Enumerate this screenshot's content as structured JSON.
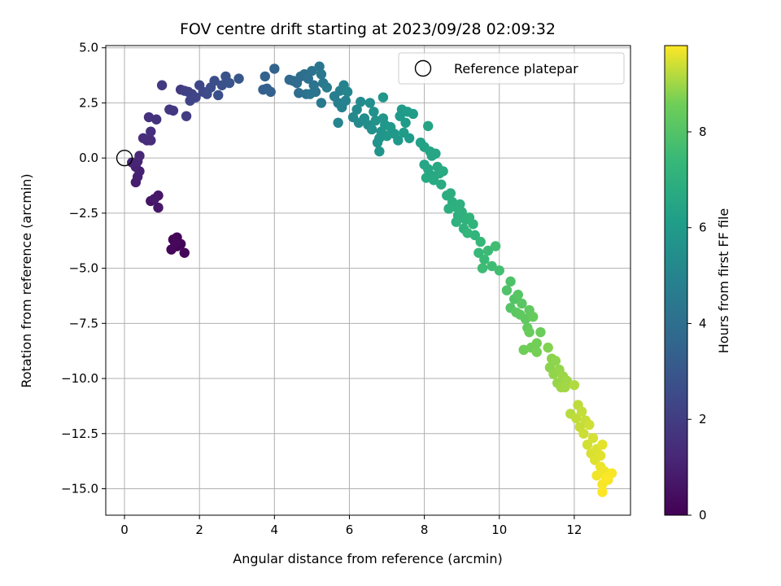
{
  "chart_data": {
    "type": "scatter",
    "title": "FOV centre drift starting at 2023/09/28 02:09:32",
    "xlabel": "Angular distance from reference (arcmin)",
    "ylabel": "Rotation from reference (arcmin)",
    "xlim": [
      -0.5,
      13.5
    ],
    "ylim": [
      -16.2,
      5.1
    ],
    "xticks": [
      0,
      2,
      4,
      6,
      8,
      10,
      12
    ],
    "xtick_labels": [
      "0",
      "2",
      "4",
      "6",
      "8",
      "10",
      "12"
    ],
    "yticks": [
      5.0,
      2.5,
      0.0,
      -2.5,
      -5.0,
      -7.5,
      -10.0,
      -12.5,
      -15.0
    ],
    "ytick_labels": [
      "5.0",
      "2.5",
      "0.0",
      "−2.5",
      "−5.0",
      "−7.5",
      "−10.0",
      "−12.5",
      "−15.0"
    ],
    "grid": true,
    "legend": {
      "placement": "top-right",
      "entries": [
        "Reference platepar"
      ]
    },
    "colorbar": {
      "label": "Hours from first FF file",
      "range": [
        0,
        9.8
      ],
      "ticks": [
        0,
        2,
        4,
        6,
        8
      ],
      "tick_labels": [
        "0",
        "2",
        "4",
        "6",
        "8"
      ],
      "colormap": "viridis"
    },
    "reference_point": {
      "x": 0.0,
      "y": 0.0
    },
    "points": [
      [
        1.3,
        -3.7,
        0.05
      ],
      [
        1.4,
        -4.0,
        0.1
      ],
      [
        1.5,
        -3.9,
        0.12
      ],
      [
        1.4,
        -3.6,
        0.15
      ],
      [
        1.6,
        -4.3,
        0.18
      ],
      [
        1.25,
        -4.15,
        0.2
      ],
      [
        1.35,
        -3.85,
        0.22
      ],
      [
        0.7,
        -1.95,
        0.6
      ],
      [
        0.9,
        -1.7,
        0.65
      ],
      [
        0.9,
        -2.25,
        0.7
      ],
      [
        0.8,
        -1.85,
        0.75
      ],
      [
        0.3,
        -1.1,
        0.9
      ],
      [
        0.35,
        -0.85,
        0.95
      ],
      [
        0.4,
        -0.6,
        1.0
      ],
      [
        0.3,
        -0.4,
        1.05
      ],
      [
        0.2,
        -0.2,
        1.1
      ],
      [
        0.35,
        -0.15,
        1.15
      ],
      [
        0.4,
        0.1,
        1.2
      ],
      [
        0.6,
        0.8,
        1.35
      ],
      [
        0.7,
        0.8,
        1.4
      ],
      [
        0.5,
        0.9,
        1.45
      ],
      [
        0.7,
        1.2,
        1.5
      ],
      [
        0.65,
        1.85,
        1.55
      ],
      [
        0.85,
        1.75,
        1.6
      ],
      [
        1.2,
        2.2,
        1.75
      ],
      [
        1.3,
        2.15,
        1.8
      ],
      [
        1.0,
        3.3,
        1.85
      ],
      [
        1.5,
        3.1,
        1.9
      ],
      [
        1.65,
        1.9,
        1.95
      ],
      [
        1.6,
        3.05,
        2.1
      ],
      [
        1.7,
        3.0,
        2.15
      ],
      [
        1.8,
        2.9,
        2.2
      ],
      [
        1.75,
        2.6,
        2.25
      ],
      [
        1.9,
        2.75,
        2.3
      ],
      [
        2.0,
        3.3,
        2.35
      ],
      [
        2.1,
        3.0,
        2.4
      ],
      [
        2.2,
        2.9,
        2.55
      ],
      [
        2.3,
        3.2,
        2.6
      ],
      [
        2.4,
        3.5,
        2.65
      ],
      [
        2.5,
        2.85,
        2.7
      ],
      [
        2.6,
        3.3,
        2.75
      ],
      [
        2.7,
        3.7,
        2.8
      ],
      [
        2.8,
        3.4,
        2.85
      ],
      [
        3.05,
        3.6,
        2.95
      ],
      [
        3.7,
        3.1,
        3.3
      ],
      [
        3.8,
        3.15,
        3.35
      ],
      [
        3.9,
        3.0,
        3.4
      ],
      [
        3.75,
        3.7,
        3.45
      ],
      [
        4.0,
        4.05,
        3.5
      ],
      [
        4.4,
        3.55,
        3.75
      ],
      [
        4.5,
        3.5,
        3.8
      ],
      [
        4.6,
        3.4,
        3.85
      ],
      [
        4.7,
        3.7,
        3.9
      ],
      [
        4.65,
        2.95,
        3.95
      ],
      [
        4.8,
        3.8,
        4.0
      ],
      [
        4.9,
        3.6,
        4.05
      ],
      [
        4.85,
        2.9,
        4.1
      ],
      [
        5.0,
        3.95,
        4.15
      ],
      [
        5.05,
        3.3,
        4.2
      ],
      [
        5.1,
        3.0,
        4.25
      ],
      [
        4.95,
        2.9,
        4.3
      ],
      [
        5.2,
        4.15,
        4.35
      ],
      [
        5.25,
        3.8,
        4.4
      ],
      [
        5.3,
        3.4,
        4.45
      ],
      [
        5.25,
        2.5,
        4.5
      ],
      [
        5.4,
        3.2,
        4.55
      ],
      [
        5.6,
        2.8,
        4.7
      ],
      [
        5.7,
        2.5,
        4.75
      ],
      [
        5.75,
        3.05,
        4.8
      ],
      [
        5.8,
        2.3,
        4.85
      ],
      [
        5.9,
        2.6,
        4.9
      ],
      [
        5.85,
        3.3,
        4.95
      ],
      [
        5.7,
        1.6,
        5.0
      ],
      [
        5.95,
        3.0,
        5.05
      ],
      [
        6.1,
        1.85,
        5.15
      ],
      [
        6.2,
        2.2,
        5.2
      ],
      [
        6.3,
        2.55,
        5.25
      ],
      [
        6.25,
        1.6,
        5.3
      ],
      [
        6.4,
        1.8,
        5.35
      ],
      [
        6.5,
        1.5,
        5.4
      ],
      [
        6.55,
        2.5,
        5.45
      ],
      [
        6.6,
        1.3,
        5.5
      ],
      [
        6.65,
        2.1,
        5.55
      ],
      [
        6.7,
        1.7,
        5.6
      ],
      [
        6.75,
        0.7,
        5.65
      ],
      [
        6.8,
        0.9,
        5.7
      ],
      [
        6.85,
        1.2,
        5.72
      ],
      [
        6.8,
        0.3,
        5.75
      ],
      [
        6.9,
        1.8,
        5.78
      ],
      [
        6.95,
        1.5,
        5.8
      ],
      [
        6.9,
        2.75,
        5.82
      ],
      [
        7.0,
        1.0,
        5.85
      ],
      [
        7.1,
        1.4,
        5.88
      ],
      [
        7.2,
        1.1,
        5.9
      ],
      [
        7.3,
        0.8,
        5.92
      ],
      [
        7.35,
        1.9,
        5.95
      ],
      [
        7.4,
        2.2,
        5.98
      ],
      [
        7.5,
        1.6,
        6.0
      ],
      [
        7.45,
        1.15,
        6.02
      ],
      [
        7.6,
        0.9,
        6.05
      ],
      [
        7.7,
        2.0,
        6.08
      ],
      [
        7.55,
        2.1,
        6.1
      ],
      [
        7.9,
        0.7,
        6.3
      ],
      [
        8.0,
        0.5,
        6.35
      ],
      [
        8.1,
        1.45,
        6.4
      ],
      [
        8.15,
        0.3,
        6.45
      ],
      [
        8.2,
        0.1,
        6.48
      ],
      [
        8.3,
        0.2,
        6.5
      ],
      [
        8.0,
        -0.3,
        6.52
      ],
      [
        8.1,
        -0.5,
        6.55
      ],
      [
        8.2,
        -0.8,
        6.58
      ],
      [
        8.35,
        -0.4,
        6.6
      ],
      [
        8.4,
        -0.7,
        6.62
      ],
      [
        8.05,
        -0.9,
        6.65
      ],
      [
        8.25,
        -1.0,
        6.68
      ],
      [
        8.5,
        -0.6,
        6.7
      ],
      [
        8.45,
        -1.2,
        6.72
      ],
      [
        8.6,
        -1.7,
        6.85
      ],
      [
        8.7,
        -1.6,
        6.88
      ],
      [
        8.75,
        -2.0,
        6.9
      ],
      [
        8.65,
        -2.3,
        6.93
      ],
      [
        8.8,
        -2.2,
        6.95
      ],
      [
        8.9,
        -2.6,
        6.98
      ],
      [
        8.95,
        -2.1,
        7.0
      ],
      [
        9.0,
        -2.45,
        7.03
      ],
      [
        9.1,
        -2.8,
        7.05
      ],
      [
        8.85,
        -2.9,
        7.08
      ],
      [
        9.05,
        -3.2,
        7.1
      ],
      [
        9.2,
        -2.7,
        7.13
      ],
      [
        9.3,
        -3.0,
        7.15
      ],
      [
        9.15,
        -3.4,
        7.18
      ],
      [
        9.35,
        -3.5,
        7.2
      ],
      [
        9.5,
        -3.8,
        7.35
      ],
      [
        9.45,
        -4.3,
        7.4
      ],
      [
        9.6,
        -4.6,
        7.45
      ],
      [
        9.7,
        -4.2,
        7.5
      ],
      [
        9.55,
        -5.0,
        7.55
      ],
      [
        9.8,
        -4.9,
        7.58
      ],
      [
        9.9,
        -4.0,
        7.6
      ],
      [
        10.0,
        -5.1,
        7.65
      ],
      [
        10.3,
        -5.6,
        7.9
      ],
      [
        10.2,
        -6.0,
        7.95
      ],
      [
        10.4,
        -6.4,
        8.0
      ],
      [
        10.3,
        -6.8,
        8.05
      ],
      [
        10.5,
        -6.2,
        8.1
      ],
      [
        10.6,
        -6.6,
        8.15
      ],
      [
        10.45,
        -7.0,
        8.2
      ],
      [
        10.7,
        -7.3,
        8.25
      ],
      [
        10.55,
        -7.1,
        8.28
      ],
      [
        10.8,
        -6.9,
        8.3
      ],
      [
        10.75,
        -7.7,
        8.35
      ],
      [
        10.9,
        -7.2,
        8.4
      ],
      [
        10.8,
        -7.9,
        8.45
      ],
      [
        11.1,
        -7.9,
        8.5
      ],
      [
        10.65,
        -8.7,
        8.55
      ],
      [
        10.85,
        -8.6,
        8.58
      ],
      [
        11.0,
        -8.4,
        8.6
      ],
      [
        11.0,
        -8.8,
        8.62
      ],
      [
        11.3,
        -8.6,
        8.75
      ],
      [
        11.4,
        -9.1,
        8.8
      ],
      [
        11.35,
        -9.5,
        8.82
      ],
      [
        11.5,
        -9.2,
        8.85
      ],
      [
        11.45,
        -9.8,
        8.88
      ],
      [
        11.6,
        -9.6,
        8.9
      ],
      [
        11.55,
        -10.2,
        8.92
      ],
      [
        11.7,
        -9.9,
        8.95
      ],
      [
        11.65,
        -10.4,
        8.98
      ],
      [
        11.8,
        -10.1,
        9.0
      ],
      [
        11.75,
        -10.4,
        9.02
      ],
      [
        12.0,
        -10.3,
        9.15
      ],
      [
        11.9,
        -11.6,
        9.2
      ],
      [
        12.1,
        -11.2,
        9.25
      ],
      [
        12.05,
        -11.8,
        9.28
      ],
      [
        12.2,
        -11.5,
        9.3
      ],
      [
        12.15,
        -12.2,
        9.33
      ],
      [
        12.3,
        -11.9,
        9.35
      ],
      [
        12.25,
        -12.5,
        9.38
      ],
      [
        12.4,
        -12.1,
        9.4
      ],
      [
        12.35,
        -13.0,
        9.43
      ],
      [
        12.5,
        -12.7,
        9.45
      ],
      [
        12.45,
        -13.4,
        9.48
      ],
      [
        12.6,
        -13.2,
        9.5
      ],
      [
        12.55,
        -13.7,
        9.53
      ],
      [
        12.7,
        -13.5,
        9.55
      ],
      [
        12.75,
        -13.0,
        9.58
      ],
      [
        12.7,
        -14.0,
        9.65
      ],
      [
        12.8,
        -14.2,
        9.68
      ],
      [
        12.6,
        -14.4,
        9.7
      ],
      [
        12.9,
        -14.6,
        9.72
      ],
      [
        12.75,
        -14.8,
        9.74
      ],
      [
        13.0,
        -14.3,
        9.76
      ],
      [
        12.85,
        -14.5,
        9.78
      ],
      [
        12.75,
        -15.15,
        9.8
      ]
    ]
  }
}
